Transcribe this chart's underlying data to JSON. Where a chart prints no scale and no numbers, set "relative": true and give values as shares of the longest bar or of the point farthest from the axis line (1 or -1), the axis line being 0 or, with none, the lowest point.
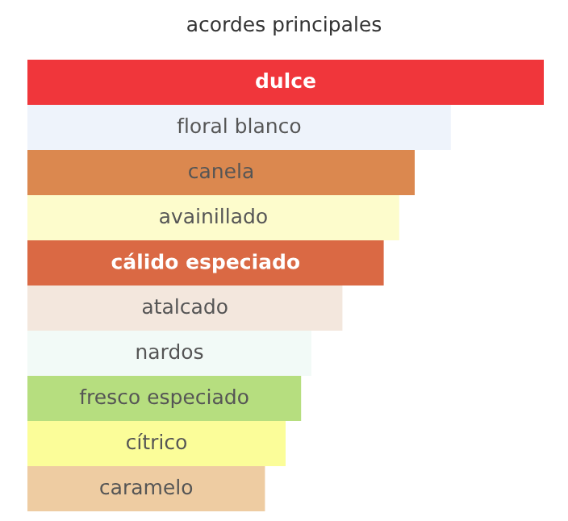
{
  "chart_data": {
    "type": "bar",
    "title": "acordes principales",
    "orientation": "horizontal",
    "relative": true,
    "categories": [
      "dulce",
      "floral blanco",
      "canela",
      "avainillado",
      "cálido especiado",
      "atalcado",
      "nardos",
      "fresco especiado",
      "cítrico",
      "caramelo"
    ],
    "values": [
      1,
      0.82,
      0.75,
      0.72,
      0.69,
      0.61,
      0.55,
      0.53,
      0.5,
      0.46
    ],
    "colors": [
      "#f0363b",
      "#eef3fb",
      "#db884f",
      "#fdfccc",
      "#da6944",
      "#f3e7dd",
      "#f2faf7",
      "#b6de7f",
      "#fbfd99",
      "#eecca2"
    ]
  }
}
